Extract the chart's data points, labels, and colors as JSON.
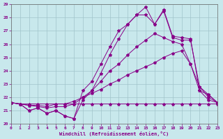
{
  "xlabel": "Windchill (Refroidissement éolien,°C)",
  "xlim": [
    0,
    23
  ],
  "ylim": [
    20,
    29
  ],
  "xtick_vals": [
    0,
    1,
    2,
    3,
    4,
    5,
    6,
    7,
    8,
    9,
    10,
    11,
    12,
    13,
    14,
    15,
    16,
    17,
    18,
    19,
    20,
    21,
    22,
    23
  ],
  "ytick_vals": [
    20,
    21,
    22,
    23,
    24,
    25,
    26,
    27,
    28,
    29
  ],
  "background_color": "#c8e8ec",
  "grid_color": "#a0c4ca",
  "line_color": "#880088",
  "lines": [
    {
      "x": [
        0,
        1,
        2,
        3,
        4,
        5,
        6,
        7,
        8,
        9,
        10,
        11,
        12,
        13,
        14,
        15,
        16,
        17,
        18,
        19,
        20,
        21,
        22,
        23
      ],
      "y": [
        21.6,
        21.5,
        21.5,
        21.5,
        21.5,
        21.5,
        21.5,
        21.5,
        21.5,
        21.5,
        21.5,
        21.5,
        21.5,
        21.5,
        21.5,
        21.5,
        21.5,
        21.5,
        21.5,
        21.5,
        21.5,
        21.5,
        21.5,
        21.5
      ]
    },
    {
      "x": [
        0,
        1,
        2,
        3,
        4,
        5,
        6,
        7,
        8,
        9,
        10,
        11,
        12,
        13,
        14,
        15,
        16,
        17,
        18,
        19,
        20,
        21,
        22,
        23
      ],
      "y": [
        21.6,
        21.5,
        21.4,
        21.4,
        21.3,
        21.5,
        21.5,
        21.7,
        22.0,
        22.3,
        22.6,
        23.0,
        23.3,
        23.7,
        24.0,
        24.3,
        24.6,
        25.0,
        25.3,
        25.5,
        24.5,
        22.5,
        22.2,
        21.6
      ]
    },
    {
      "x": [
        0,
        1,
        2,
        3,
        4,
        5,
        6,
        7,
        8,
        9,
        10,
        11,
        12,
        13,
        14,
        15,
        16,
        17,
        18,
        19,
        20,
        21,
        22,
        23
      ],
      "y": [
        21.6,
        21.5,
        21.4,
        21.3,
        21.2,
        21.3,
        21.3,
        21.5,
        22.0,
        22.5,
        23.2,
        24.0,
        24.5,
        25.2,
        25.8,
        26.3,
        26.8,
        26.5,
        26.2,
        26.0,
        24.5,
        22.8,
        22.2,
        21.6
      ]
    },
    {
      "x": [
        0,
        1,
        2,
        3,
        4,
        5,
        6,
        7,
        8,
        9,
        10,
        11,
        12,
        13,
        14,
        15,
        16,
        17,
        18,
        19,
        20,
        21,
        22,
        23
      ],
      "y": [
        21.6,
        21.5,
        21.0,
        21.2,
        20.8,
        21.0,
        20.6,
        20.4,
        21.8,
        22.5,
        23.8,
        25.2,
        26.4,
        27.5,
        28.2,
        28.2,
        27.5,
        28.5,
        26.5,
        26.3,
        26.3,
        22.8,
        22.0,
        21.6
      ]
    },
    {
      "x": [
        0,
        1,
        2,
        3,
        4,
        5,
        6,
        7,
        8,
        9,
        10,
        11,
        12,
        13,
        14,
        15,
        16,
        17,
        18,
        19,
        20,
        21,
        22,
        23
      ],
      "y": [
        21.6,
        21.5,
        21.0,
        21.2,
        20.8,
        21.0,
        20.6,
        20.4,
        22.5,
        23.2,
        24.5,
        25.8,
        27.0,
        27.5,
        28.2,
        28.8,
        27.5,
        28.6,
        26.6,
        26.5,
        26.4,
        22.5,
        21.8,
        21.6
      ]
    }
  ]
}
